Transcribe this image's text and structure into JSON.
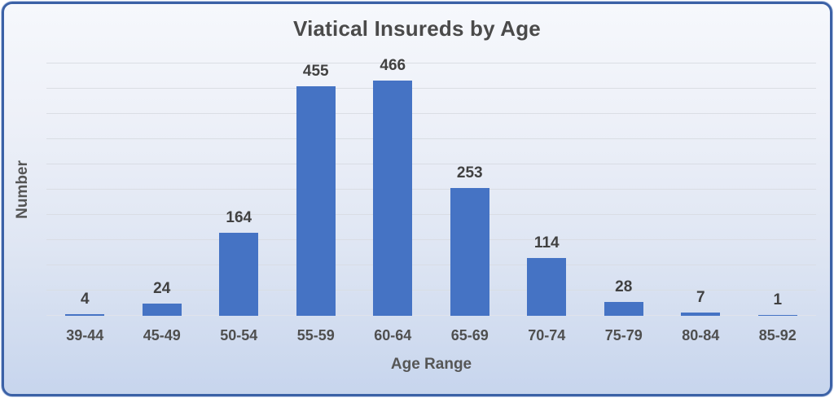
{
  "chart_title": "Viatical Insureds by Age",
  "chart_data": {
    "type": "bar",
    "title": "Viatical Insureds by Age",
    "xlabel": "Age Range",
    "ylabel": "Number",
    "categories": [
      "39-44",
      "45-49",
      "50-54",
      "55-59",
      "60-64",
      "65-69",
      "70-74",
      "75-79",
      "80-84",
      "85-92"
    ],
    "values": [
      4,
      24,
      164,
      455,
      466,
      253,
      114,
      28,
      7,
      1
    ],
    "ylim": [
      0,
      500
    ],
    "gridline_step": 50,
    "grid": true,
    "legend_position": "none",
    "data_labels": true,
    "bar_color": "#4573C4"
  },
  "colors": {
    "bar": "#4573C4",
    "border": "#3B61A6",
    "gridline": "#D8DCE3",
    "text": "#4A4A4A",
    "background_top": "#F6F8FC",
    "background_bottom": "#C7D5ED"
  }
}
